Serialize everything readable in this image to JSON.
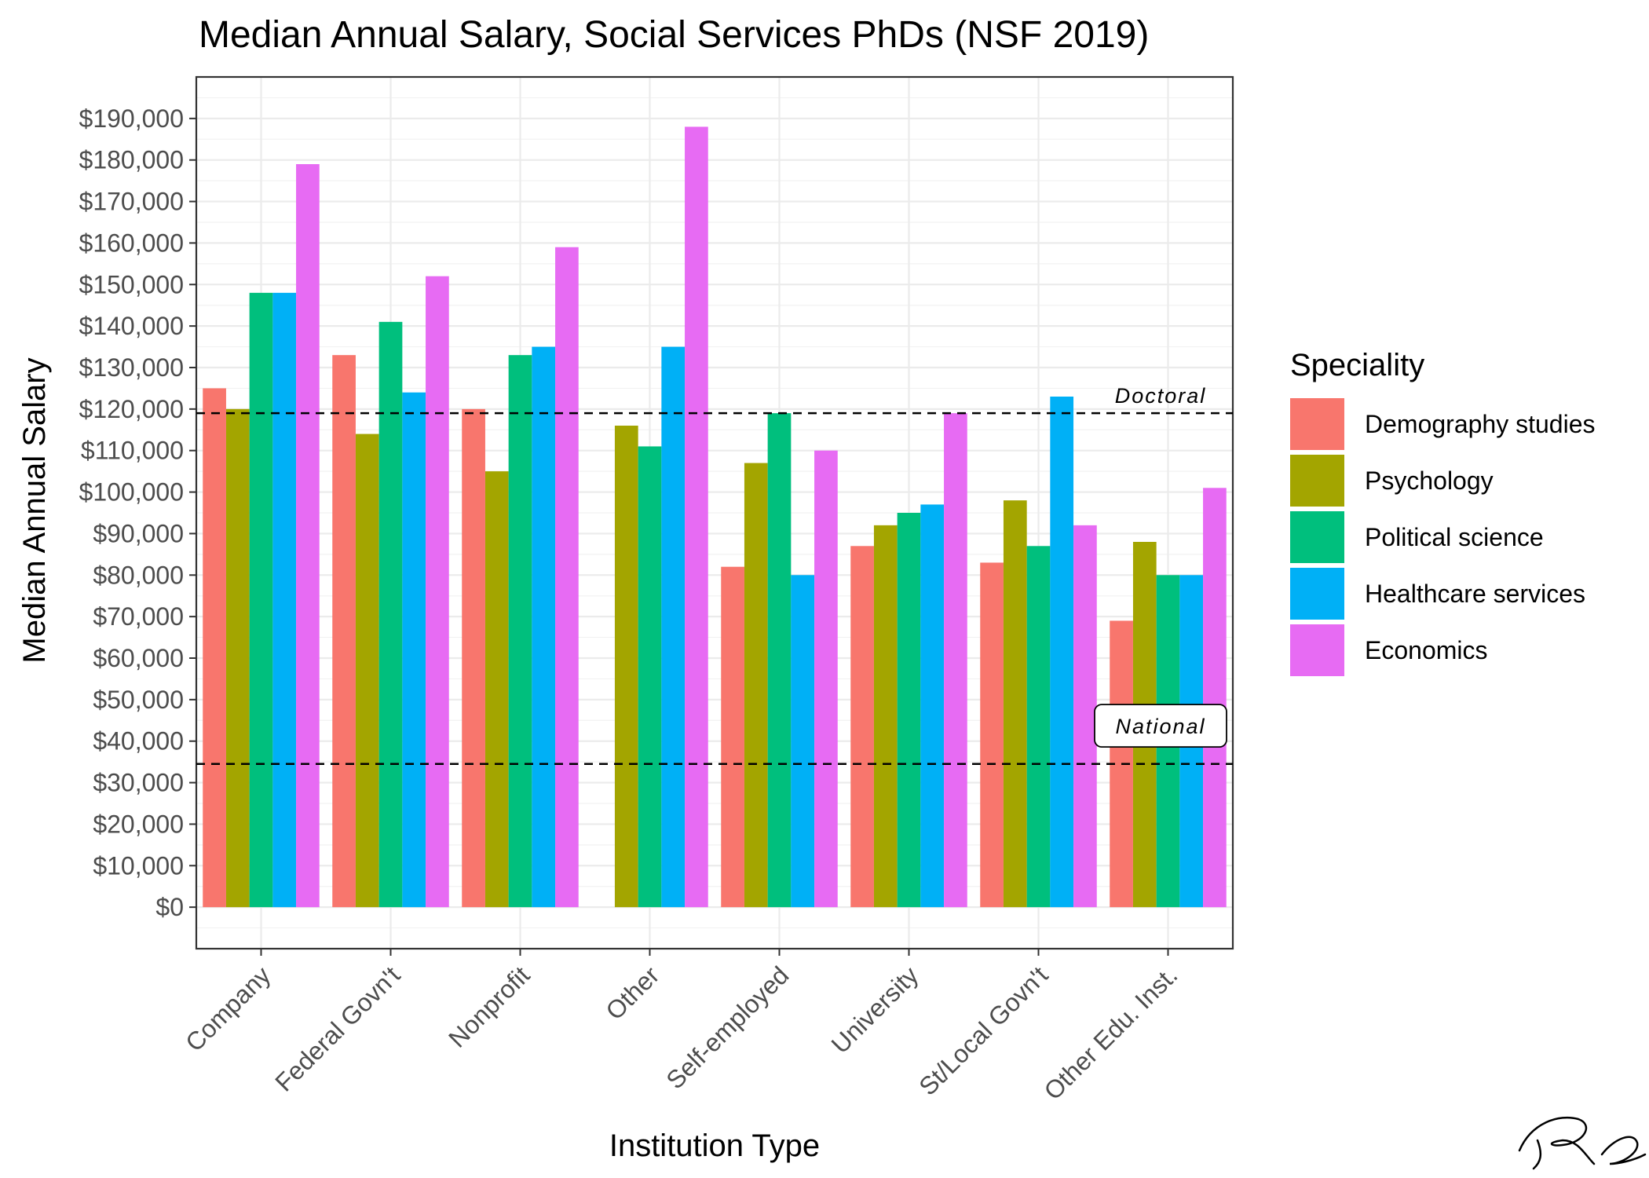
{
  "chart_data": {
    "type": "bar",
    "title": "Median Annual Salary, Social Services PhDs (NSF 2019)",
    "xlabel": "Institution Type",
    "ylabel": "Median Annual Salary",
    "ylim": [
      -10000,
      200000
    ],
    "y_ticks": [
      0,
      10000,
      20000,
      30000,
      40000,
      50000,
      60000,
      70000,
      80000,
      90000,
      100000,
      110000,
      120000,
      130000,
      140000,
      150000,
      160000,
      170000,
      180000,
      190000
    ],
    "y_tick_labels": [
      "$0",
      "$10,000",
      "$20,000",
      "$30,000",
      "$40,000",
      "$50,000",
      "$60,000",
      "$70,000",
      "$80,000",
      "$90,000",
      "$100,000",
      "$110,000",
      "$120,000",
      "$130,000",
      "$140,000",
      "$150,000",
      "$160,000",
      "$170,000",
      "$180,000",
      "$190,000"
    ],
    "categories": [
      "Company",
      "Federal Govn't",
      "Nonprofit",
      "Other",
      "Self-employed",
      "University",
      "St/Local Govn't",
      "Other Edu. Inst."
    ],
    "legend_title": "Speciality",
    "legend_position": "right",
    "grid": true,
    "series": [
      {
        "name": "Demography studies",
        "color": "#F8766D",
        "values": [
          125000,
          133000,
          120000,
          null,
          82000,
          87000,
          83000,
          69000
        ]
      },
      {
        "name": "Psychology",
        "color": "#A3A500",
        "values": [
          120000,
          114000,
          105000,
          116000,
          107000,
          92000,
          98000,
          88000
        ]
      },
      {
        "name": "Political science",
        "color": "#00BF7D",
        "values": [
          148000,
          141000,
          133000,
          111000,
          119000,
          95000,
          87000,
          80000
        ]
      },
      {
        "name": "Healthcare services",
        "color": "#00B0F6",
        "values": [
          148000,
          124000,
          135000,
          135000,
          80000,
          97000,
          123000,
          80000
        ]
      },
      {
        "name": "Economics",
        "color": "#E76BF3",
        "values": [
          179000,
          152000,
          159000,
          188000,
          110000,
          119000,
          92000,
          101000
        ]
      }
    ],
    "reference_lines": [
      {
        "label": "Doctoral",
        "value": 119000,
        "style": "dashed",
        "boxed": false
      },
      {
        "label": "National",
        "value": 34500,
        "style": "dashed",
        "boxed": true
      }
    ]
  },
  "signature": {
    "text": "RC"
  }
}
